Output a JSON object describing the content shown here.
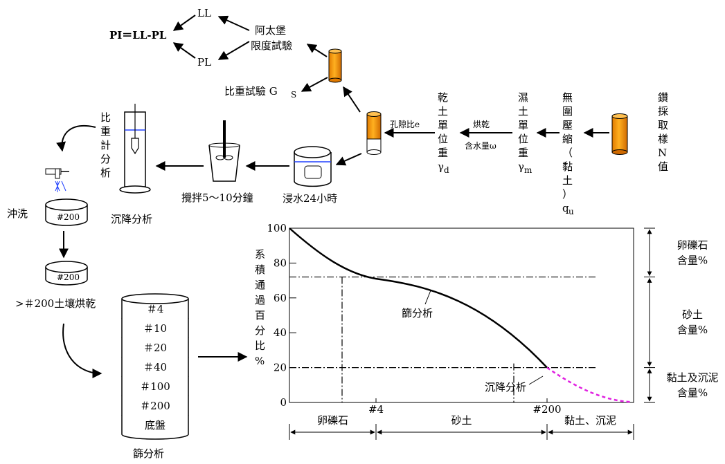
{
  "atterberg": {
    "ll": "LL",
    "pl": "PL",
    "pi_formula": "PI＝LL-PL",
    "test_line1": "阿太堡",
    "test_line2": "限度試驗"
  },
  "specific_gravity_test": "比重試驗 G",
  "specific_gravity_sub": "S",
  "hydrometer": {
    "chars": [
      "比",
      "重",
      "計",
      "分",
      "析"
    ]
  },
  "sedimentation_analysis": "沉降分析",
  "stir_label": "攪拌5～10分鐘",
  "soak_label": "浸水24小時",
  "wash_label": "沖洗",
  "sieve_200_label": "#200",
  "dry_label": ">＃200土壤烘乾",
  "void_ratio_label": "孔隙比e",
  "dry_unit_weight": {
    "chars": [
      "乾",
      "土",
      "單",
      "位",
      "重",
      "γ"
    ],
    "sub": "d"
  },
  "drying_label": "烘乾",
  "water_content_label": "含水量ω",
  "wet_unit_weight": {
    "chars": [
      "濕",
      "土",
      "單",
      "位",
      "重",
      "γ"
    ],
    "sub": "m"
  },
  "unconfined": {
    "chars": [
      "無",
      "圍",
      "壓",
      "縮",
      "（",
      "黏",
      "土",
      "）",
      "q"
    ],
    "sub": "u"
  },
  "sampling": {
    "chars": [
      "鑽",
      "採",
      "取",
      "樣",
      "N",
      "值"
    ]
  },
  "sieve_stack": {
    "labels": [
      "＃4",
      "＃10",
      "＃20",
      "＃40",
      "＃100",
      "＃200",
      "底盤"
    ],
    "title": "篩分析"
  },
  "chart_data": {
    "type": "line",
    "ylabel_chars": [
      "系",
      "積",
      "通",
      "過",
      "百",
      "分",
      "比",
      "%"
    ],
    "yticks": [
      0,
      20,
      40,
      60,
      80,
      100
    ],
    "ylim": [
      0,
      100
    ],
    "x_markers": [
      "#4",
      "#200"
    ],
    "reference_lines": [
      72,
      20
    ],
    "series": [
      {
        "name": "篩分析",
        "style": "solid",
        "color": "#000000"
      },
      {
        "name": "沉降分析",
        "style": "dashed",
        "color": "#e020e0"
      }
    ],
    "right_labels": [
      [
        "卵礫石",
        "含量%"
      ],
      [
        "砂土",
        "含量%"
      ],
      [
        "黏土及沉泥",
        "含量%"
      ]
    ],
    "bottom_labels": [
      "卵礫石",
      "砂土",
      "黏土、沉泥"
    ]
  }
}
